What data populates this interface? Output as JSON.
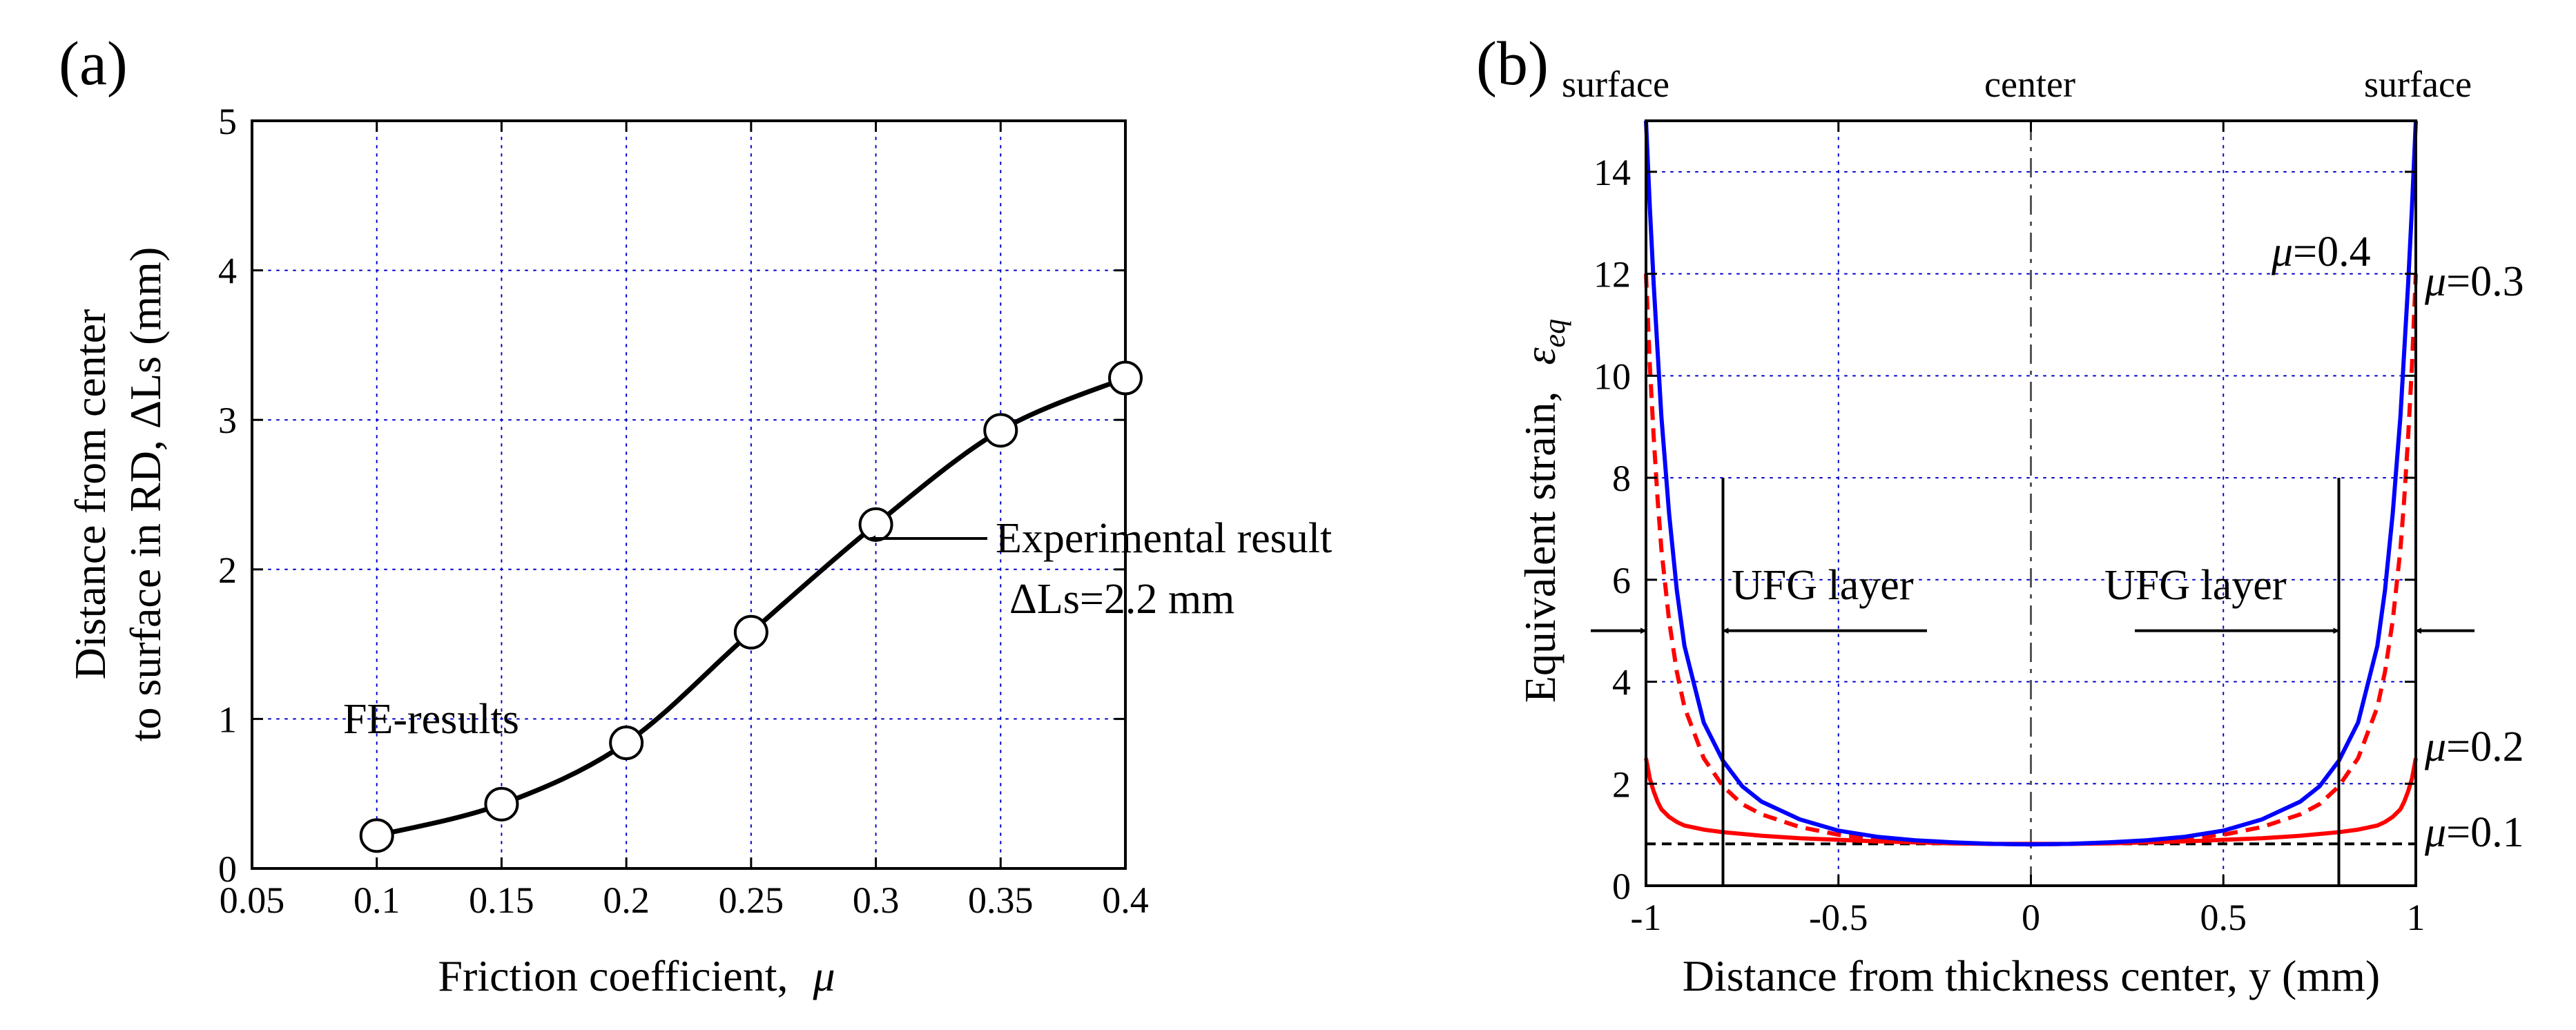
{
  "chart_data": [
    {
      "panel_label": "(a)",
      "type": "line",
      "xlabel": "Friction coefficient,",
      "xlabel_symbol": "μ",
      "ylabel_line1": "Distance from center",
      "ylabel_line2": "to surface in RD,  ΔLs (mm)",
      "xlim": [
        0.05,
        0.4
      ],
      "ylim": [
        0,
        5
      ],
      "xticks": [
        "0.05",
        "0.1",
        "0.15",
        "0.2",
        "0.25",
        "0.3",
        "0.35",
        "0.4"
      ],
      "yticks": [
        "0",
        "1",
        "2",
        "3",
        "4",
        "5"
      ],
      "grid": true,
      "series": [
        {
          "name": "FE-results",
          "x": [
            0.1,
            0.15,
            0.2,
            0.25,
            0.3,
            0.35,
            0.4
          ],
          "y": [
            0.22,
            0.43,
            0.84,
            1.58,
            2.3,
            2.93,
            3.28
          ],
          "marker": "open-circle"
        }
      ],
      "annotations": {
        "fe_label": "FE-results",
        "exp_line1": "Experimental result",
        "exp_line2": "ΔLs=2.2 mm"
      }
    },
    {
      "panel_label": "(b)",
      "type": "line",
      "xlabel": "Distance from thickness center,  y (mm)",
      "ylabel": "Equivalent strain,",
      "ylabel_symbol": "ε",
      "ylabel_subscript": "eq",
      "xlim": [
        -1,
        1
      ],
      "ylim": [
        0,
        15
      ],
      "xticks": [
        "-1",
        "-0.5",
        "0",
        "0.5",
        "1"
      ],
      "yticks": [
        "0",
        "2",
        "4",
        "6",
        "8",
        "10",
        "12",
        "14"
      ],
      "grid": true,
      "top_labels": [
        "surface",
        "center",
        "surface"
      ],
      "ufg_label": "UFG layer",
      "ufg_boundary_y": 0.8,
      "series": [
        {
          "name": "μ=0.1",
          "mu_value": "0.1",
          "color": "#000000",
          "style": "dashed",
          "x": [
            -1,
            -0.5,
            0,
            0.5,
            1
          ],
          "y": [
            0.82,
            0.82,
            0.82,
            0.82,
            0.82
          ]
        },
        {
          "name": "μ=0.2",
          "mu_value": "0.2",
          "color": "#ff0000",
          "style": "solid",
          "x": [
            -1,
            -0.99,
            -0.98,
            -0.97,
            -0.96,
            -0.94,
            -0.92,
            -0.9,
            -0.85,
            -0.8,
            -0.7,
            -0.6,
            -0.5,
            -0.4,
            -0.3,
            -0.2,
            -0.1,
            0,
            0.1,
            0.2,
            0.3,
            0.4,
            0.5,
            0.6,
            0.7,
            0.8,
            0.85,
            0.9,
            0.92,
            0.94,
            0.96,
            0.97,
            0.98,
            0.99,
            1
          ],
          "y": [
            2.5,
            2.1,
            1.85,
            1.65,
            1.5,
            1.35,
            1.25,
            1.18,
            1.1,
            1.05,
            0.98,
            0.93,
            0.9,
            0.87,
            0.85,
            0.83,
            0.82,
            0.82,
            0.82,
            0.83,
            0.85,
            0.87,
            0.9,
            0.93,
            0.98,
            1.05,
            1.1,
            1.18,
            1.25,
            1.35,
            1.5,
            1.65,
            1.85,
            2.1,
            2.5
          ]
        },
        {
          "name": "μ=0.3",
          "mu_value": "0.3",
          "color": "#ff0000",
          "style": "dashed",
          "x": [
            -1,
            -0.99,
            -0.98,
            -0.97,
            -0.96,
            -0.94,
            -0.92,
            -0.9,
            -0.85,
            -0.8,
            -0.75,
            -0.7,
            -0.6,
            -0.5,
            -0.4,
            -0.3,
            -0.2,
            -0.1,
            0,
            0.1,
            0.2,
            0.3,
            0.4,
            0.5,
            0.6,
            0.7,
            0.75,
            0.8,
            0.85,
            0.9,
            0.92,
            0.94,
            0.96,
            0.97,
            0.98,
            0.99,
            1
          ],
          "y": [
            12,
            10.2,
            8.8,
            7.6,
            6.6,
            5.2,
            4.2,
            3.5,
            2.5,
            1.95,
            1.6,
            1.4,
            1.15,
            1.0,
            0.92,
            0.87,
            0.84,
            0.82,
            0.81,
            0.82,
            0.84,
            0.87,
            0.92,
            1.0,
            1.15,
            1.4,
            1.6,
            1.95,
            2.5,
            3.5,
            4.2,
            5.2,
            6.6,
            7.6,
            8.8,
            10.2,
            12
          ]
        },
        {
          "name": "μ=0.4",
          "mu_value": "0.4",
          "color": "#0000ff",
          "style": "solid",
          "x": [
            -1,
            -0.99,
            -0.98,
            -0.97,
            -0.96,
            -0.94,
            -0.92,
            -0.9,
            -0.85,
            -0.8,
            -0.75,
            -0.7,
            -0.6,
            -0.5,
            -0.4,
            -0.3,
            -0.2,
            -0.1,
            0,
            0.1,
            0.2,
            0.3,
            0.4,
            0.5,
            0.6,
            0.7,
            0.75,
            0.8,
            0.85,
            0.9,
            0.92,
            0.94,
            0.96,
            0.97,
            0.98,
            0.99,
            1
          ],
          "y": [
            15,
            13.3,
            11.8,
            10.5,
            9.2,
            7.3,
            5.8,
            4.7,
            3.2,
            2.45,
            1.95,
            1.65,
            1.3,
            1.08,
            0.96,
            0.89,
            0.85,
            0.82,
            0.81,
            0.82,
            0.85,
            0.89,
            0.96,
            1.08,
            1.3,
            1.65,
            1.95,
            2.45,
            3.2,
            4.7,
            5.8,
            7.3,
            9.2,
            10.5,
            11.8,
            13.3,
            15
          ]
        }
      ]
    }
  ]
}
